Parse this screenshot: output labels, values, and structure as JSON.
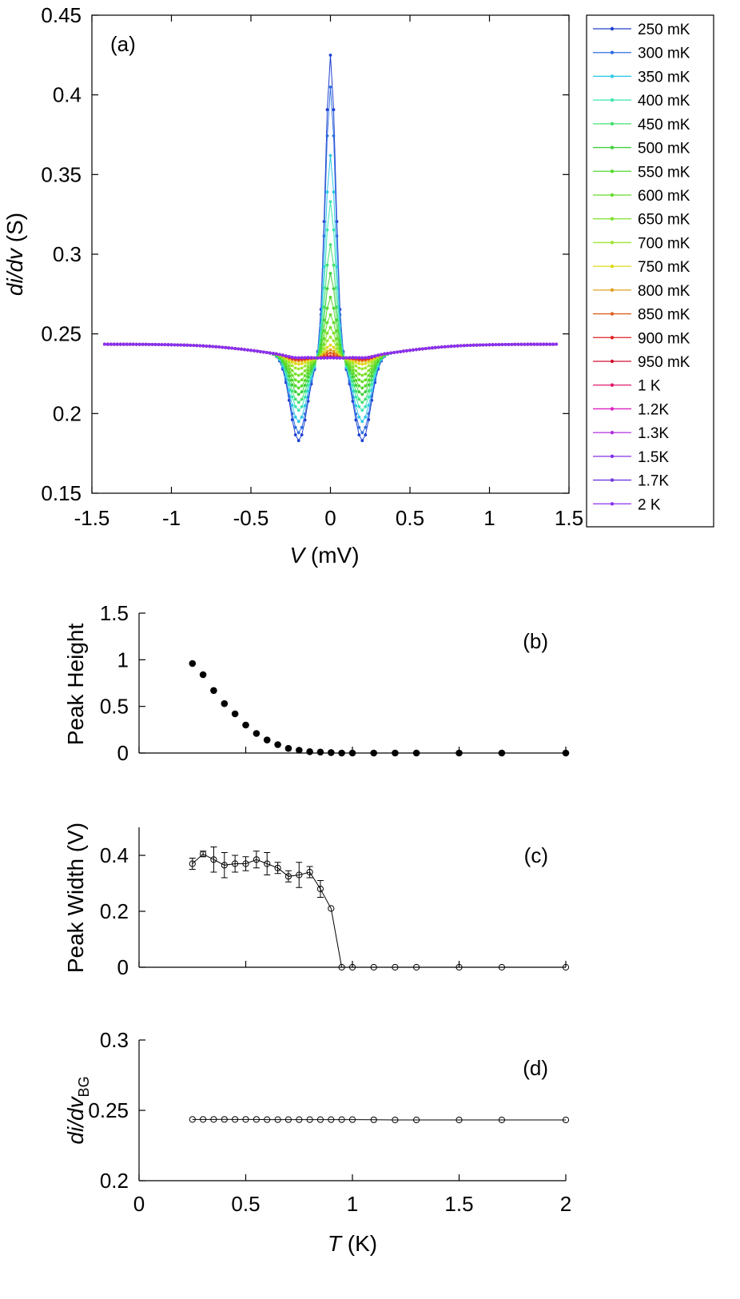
{
  "chart_data": [
    {
      "type": "line",
      "panel_label": "(a)",
      "xlabel_var": "V",
      "xlabel_unit": " (mV)",
      "ylabel_var": "di/dv",
      "ylabel_unit": " (S)",
      "xlim": [
        -1.5,
        1.5
      ],
      "ylim": [
        0.15,
        0.45
      ],
      "xticks": [
        -1.5,
        -1,
        -0.5,
        0,
        0.5,
        1,
        1.5
      ],
      "xtick_labels": [
        "-1.5",
        "-1",
        "-0.5",
        "0",
        "0.5",
        "1",
        "1.5"
      ],
      "yticks": [
        0.15,
        0.2,
        0.25,
        0.3,
        0.35,
        0.4,
        0.45
      ],
      "ytick_labels": [
        "0.15",
        "0.2",
        "0.25",
        "0.3",
        "0.35",
        "0.4",
        "0.45"
      ],
      "grid": false,
      "legend_position": "outside-right",
      "series": [
        {
          "name": "250 mK",
          "color": "#1f3fd0",
          "peak": 0.425,
          "dip": 0.183
        },
        {
          "name": "300 mK",
          "color": "#2f6fe0",
          "peak": 0.405,
          "dip": 0.188
        },
        {
          "name": "350 mK",
          "color": "#30c8e6",
          "peak": 0.362,
          "dip": 0.195
        },
        {
          "name": "400 mK",
          "color": "#3ee6b0",
          "peak": 0.333,
          "dip": 0.202
        },
        {
          "name": "450 mK",
          "color": "#42e070",
          "peak": 0.306,
          "dip": 0.207
        },
        {
          "name": "500 mK",
          "color": "#40d03c",
          "peak": 0.288,
          "dip": 0.212
        },
        {
          "name": "550 mK",
          "color": "#54d82c",
          "peak": 0.273,
          "dip": 0.216
        },
        {
          "name": "600 mK",
          "color": "#66dc2a",
          "peak": 0.262,
          "dip": 0.22
        },
        {
          "name": "650 mK",
          "color": "#7ce02a",
          "peak": 0.254,
          "dip": 0.224
        },
        {
          "name": "700 mK",
          "color": "#a0e632",
          "peak": 0.248,
          "dip": 0.228
        },
        {
          "name": "750 mK",
          "color": "#e0d81c",
          "peak": 0.243,
          "dip": 0.231
        },
        {
          "name": "800 mK",
          "color": "#e0a020",
          "peak": 0.24,
          "dip": 0.233
        },
        {
          "name": "850 mK",
          "color": "#e06020",
          "peak": 0.238,
          "dip": 0.234
        },
        {
          "name": "900 mK",
          "color": "#e02020",
          "peak": 0.236,
          "dip": 0.234
        },
        {
          "name": "950 mK",
          "color": "#d01030",
          "peak": 0.235,
          "dip": 0.235
        },
        {
          "name": "1 K",
          "color": "#e0186a",
          "peak": 0.235,
          "dip": 0.235
        },
        {
          "name": "1.2K",
          "color": "#e020c0",
          "peak": 0.235,
          "dip": 0.235
        },
        {
          "name": "1.3K",
          "color": "#b030e0",
          "peak": 0.235,
          "dip": 0.235
        },
        {
          "name": "1.5K",
          "color": "#8030e8",
          "peak": 0.235,
          "dip": 0.235
        },
        {
          "name": "1.7K",
          "color": "#7038e0",
          "peak": 0.235,
          "dip": 0.235
        },
        {
          "name": "2 K",
          "color": "#8a30f0",
          "peak": 0.235,
          "dip": 0.235
        }
      ]
    },
    {
      "type": "scatter",
      "panel_label": "(b)",
      "ylabel": "Peak Height",
      "xlim": [
        0,
        2
      ],
      "ylim": [
        0,
        1.5
      ],
      "yticks": [
        0,
        0.5,
        1,
        1.5
      ],
      "ytick_labels": [
        "0",
        "0.5",
        "1",
        "1.5"
      ],
      "marker": "filled-circle",
      "x": [
        0.25,
        0.3,
        0.35,
        0.4,
        0.45,
        0.5,
        0.55,
        0.6,
        0.65,
        0.7,
        0.75,
        0.8,
        0.85,
        0.9,
        0.95,
        1.0,
        1.1,
        1.2,
        1.3,
        1.5,
        1.7,
        2.0
      ],
      "y": [
        0.96,
        0.84,
        0.67,
        0.53,
        0.42,
        0.3,
        0.21,
        0.14,
        0.09,
        0.05,
        0.03,
        0.015,
        0.01,
        0.005,
        0.0,
        0.0,
        0.0,
        0.0,
        0.0,
        0.0,
        0.0,
        0.0
      ]
    },
    {
      "type": "line",
      "panel_label": "(c)",
      "ylabel": "Peak Width (V)",
      "xlim": [
        0,
        2
      ],
      "ylim": [
        0,
        0.5
      ],
      "yticks": [
        0,
        0.2,
        0.4
      ],
      "ytick_labels": [
        "0",
        "0.2",
        "0.4"
      ],
      "marker": "open-circle",
      "x": [
        0.25,
        0.3,
        0.35,
        0.4,
        0.45,
        0.5,
        0.55,
        0.6,
        0.65,
        0.7,
        0.75,
        0.8,
        0.85,
        0.9,
        0.95,
        1.0,
        1.1,
        1.2,
        1.3,
        1.5,
        1.7,
        2.0
      ],
      "y": [
        0.37,
        0.405,
        0.385,
        0.365,
        0.37,
        0.37,
        0.385,
        0.37,
        0.355,
        0.325,
        0.33,
        0.34,
        0.28,
        0.21,
        0.0,
        0.0,
        0.0,
        0.0,
        0.0,
        0.0,
        0.0,
        0.0
      ],
      "err": [
        0.02,
        0.01,
        0.045,
        0.045,
        0.03,
        0.025,
        0.03,
        0.04,
        0.02,
        0.02,
        0.045,
        0.02,
        0.03,
        0.0,
        0.0,
        0.0,
        0.0,
        0.0,
        0.0,
        0.0,
        0.0,
        0.0
      ]
    },
    {
      "type": "line",
      "panel_label": "(d)",
      "ylabel_var": "di/dv",
      "ylabel_sub": "BG",
      "xlabel_var": "T",
      "xlabel_unit": " (K)",
      "xlim": [
        0,
        2
      ],
      "ylim": [
        0.2,
        0.3
      ],
      "xticks": [
        0,
        0.5,
        1,
        1.5,
        2
      ],
      "xtick_labels": [
        "0",
        "0.5",
        "1",
        "1.5",
        "2"
      ],
      "yticks": [
        0.2,
        0.25,
        0.3
      ],
      "ytick_labels": [
        "0.2",
        "0.25",
        "0.3"
      ],
      "marker": "open-circle",
      "x": [
        0.25,
        0.3,
        0.35,
        0.4,
        0.45,
        0.5,
        0.55,
        0.6,
        0.65,
        0.7,
        0.75,
        0.8,
        0.85,
        0.9,
        0.95,
        1.0,
        1.1,
        1.2,
        1.3,
        1.5,
        1.7,
        2.0
      ],
      "y": [
        0.2435,
        0.2435,
        0.2435,
        0.2436,
        0.2435,
        0.2435,
        0.2435,
        0.2434,
        0.2434,
        0.2434,
        0.2434,
        0.2434,
        0.2434,
        0.2434,
        0.2434,
        0.2434,
        0.2433,
        0.2432,
        0.2432,
        0.2432,
        0.2432,
        0.2432
      ]
    }
  ]
}
